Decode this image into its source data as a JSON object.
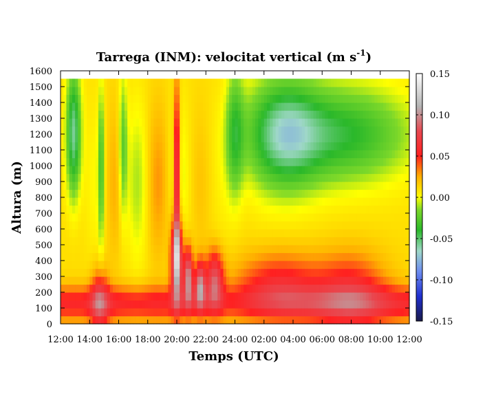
{
  "chart_data": {
    "type": "heatmap",
    "title": "Tarrega (INM): velocitat vertical (m s",
    "title_superscript": "-1",
    "title_close": ")",
    "xlabel": "Temps (UTC)",
    "ylabel": "Altura (m)",
    "x_tick_labels": [
      "12:00",
      "14:00",
      "16:00",
      "18:00",
      "20:00",
      "22:00",
      "24:00",
      "02:00",
      "04:00",
      "06:00",
      "08:00",
      "10:00",
      "12:00"
    ],
    "y_tick_labels": [
      "0",
      "100",
      "200",
      "300",
      "400",
      "500",
      "600",
      "700",
      "800",
      "900",
      "1000",
      "1100",
      "1200",
      "1300",
      "1400",
      "1500",
      "1600"
    ],
    "xlim_hours": [
      0,
      24
    ],
    "ylim": [
      0,
      1600
    ],
    "data_extent_altitude": [
      0,
      1550
    ],
    "colorbar": {
      "range": [
        -0.15,
        0.15
      ],
      "tick_labels": [
        "0.15",
        "0.10",
        "0.05",
        "0.00",
        "-0.05",
        "-0.10",
        "-0.15"
      ],
      "tick_values": [
        0.15,
        0.1,
        0.05,
        0.0,
        -0.05,
        -0.1,
        -0.15
      ],
      "colors": [
        {
          "v": -0.15,
          "c": "#1a1a4a"
        },
        {
          "v": -0.12,
          "c": "#1f2fd0"
        },
        {
          "v": -0.09,
          "c": "#6d8cf0"
        },
        {
          "v": -0.065,
          "c": "#9fd8c8"
        },
        {
          "v": -0.04,
          "c": "#2ab82a"
        },
        {
          "v": -0.015,
          "c": "#7cd82a"
        },
        {
          "v": 0.0,
          "c": "#ffff00"
        },
        {
          "v": 0.025,
          "c": "#ffb000"
        },
        {
          "v": 0.05,
          "c": "#ff2020"
        },
        {
          "v": 0.08,
          "c": "#e84850"
        },
        {
          "v": 0.11,
          "c": "#b4b4b4"
        },
        {
          "v": 0.15,
          "c": "#ffffff"
        }
      ]
    },
    "field_features": [
      {
        "kind": "convective_updraft",
        "x_hours": 8.0,
        "alt": 400,
        "sx": 0.4,
        "sy": 250,
        "amp": 0.11
      },
      {
        "kind": "convective_updraft",
        "x_hours": 8.8,
        "alt": 300,
        "sx": 0.3,
        "sy": 180,
        "amp": 0.09
      },
      {
        "kind": "convective_updraft",
        "x_hours": 9.6,
        "alt": 250,
        "sx": 0.35,
        "sy": 150,
        "amp": 0.08
      },
      {
        "kind": "convective_updraft",
        "x_hours": 10.6,
        "alt": 280,
        "sx": 0.6,
        "sy": 180,
        "amp": 0.07
      },
      {
        "kind": "narrow_updraft",
        "x_hours": 8.0,
        "alt": 950,
        "sx": 0.2,
        "sy": 550,
        "amp": 0.08
      },
      {
        "kind": "early_updraft",
        "x_hours": 2.7,
        "alt": 150,
        "sx": 0.6,
        "sy": 200,
        "amp": 0.05
      },
      {
        "kind": "downdraft",
        "x_hours": 0.9,
        "alt": 1200,
        "sx": 0.5,
        "sy": 400,
        "amp": -0.07
      },
      {
        "kind": "downdraft",
        "x_hours": 2.8,
        "alt": 1000,
        "sx": 0.2,
        "sy": 500,
        "amp": -0.04
      },
      {
        "kind": "downdraft",
        "x_hours": 4.3,
        "alt": 1100,
        "sx": 0.3,
        "sy": 450,
        "amp": -0.04
      },
      {
        "kind": "downdraft",
        "x_hours": 12.0,
        "alt": 1200,
        "sx": 0.6,
        "sy": 400,
        "amp": -0.04
      },
      {
        "kind": "downdraft",
        "x_hours": 15.3,
        "alt": 1200,
        "sx": 2.5,
        "sy": 350,
        "amp": -0.06
      },
      {
        "kind": "downdraft",
        "x_hours": 19.5,
        "alt": 1200,
        "sx": 4.5,
        "sy": 300,
        "amp": -0.05
      },
      {
        "kind": "nocturnal_low_updraft",
        "x_hours": 15.0,
        "alt": 250,
        "sx": 3.0,
        "sy": 200,
        "amp": 0.045
      },
      {
        "kind": "nocturnal_low_updraft",
        "x_hours": 20.0,
        "alt": 200,
        "sx": 2.5,
        "sy": 250,
        "amp": 0.045
      }
    ]
  }
}
